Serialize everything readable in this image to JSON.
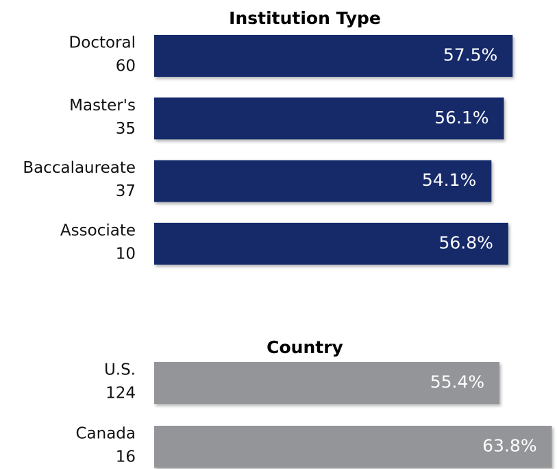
{
  "chart_data": [
    {
      "type": "bar",
      "title": "Institution Type",
      "categories": [
        "Doctoral",
        "Master's",
        "Baccalaureate",
        "Associate"
      ],
      "counts": [
        60,
        35,
        37,
        10
      ],
      "values": [
        57.5,
        56.1,
        54.1,
        56.8
      ],
      "value_labels": [
        "57.5%",
        "56.1%",
        "54.1%",
        "56.8%"
      ],
      "color": "#15296b"
    },
    {
      "type": "bar",
      "title": "Country",
      "categories": [
        "U.S.",
        "Canada"
      ],
      "counts": [
        124,
        16
      ],
      "values": [
        55.4,
        63.8
      ],
      "value_labels": [
        "55.4%",
        "63.8%"
      ],
      "color": "#939598"
    }
  ]
}
